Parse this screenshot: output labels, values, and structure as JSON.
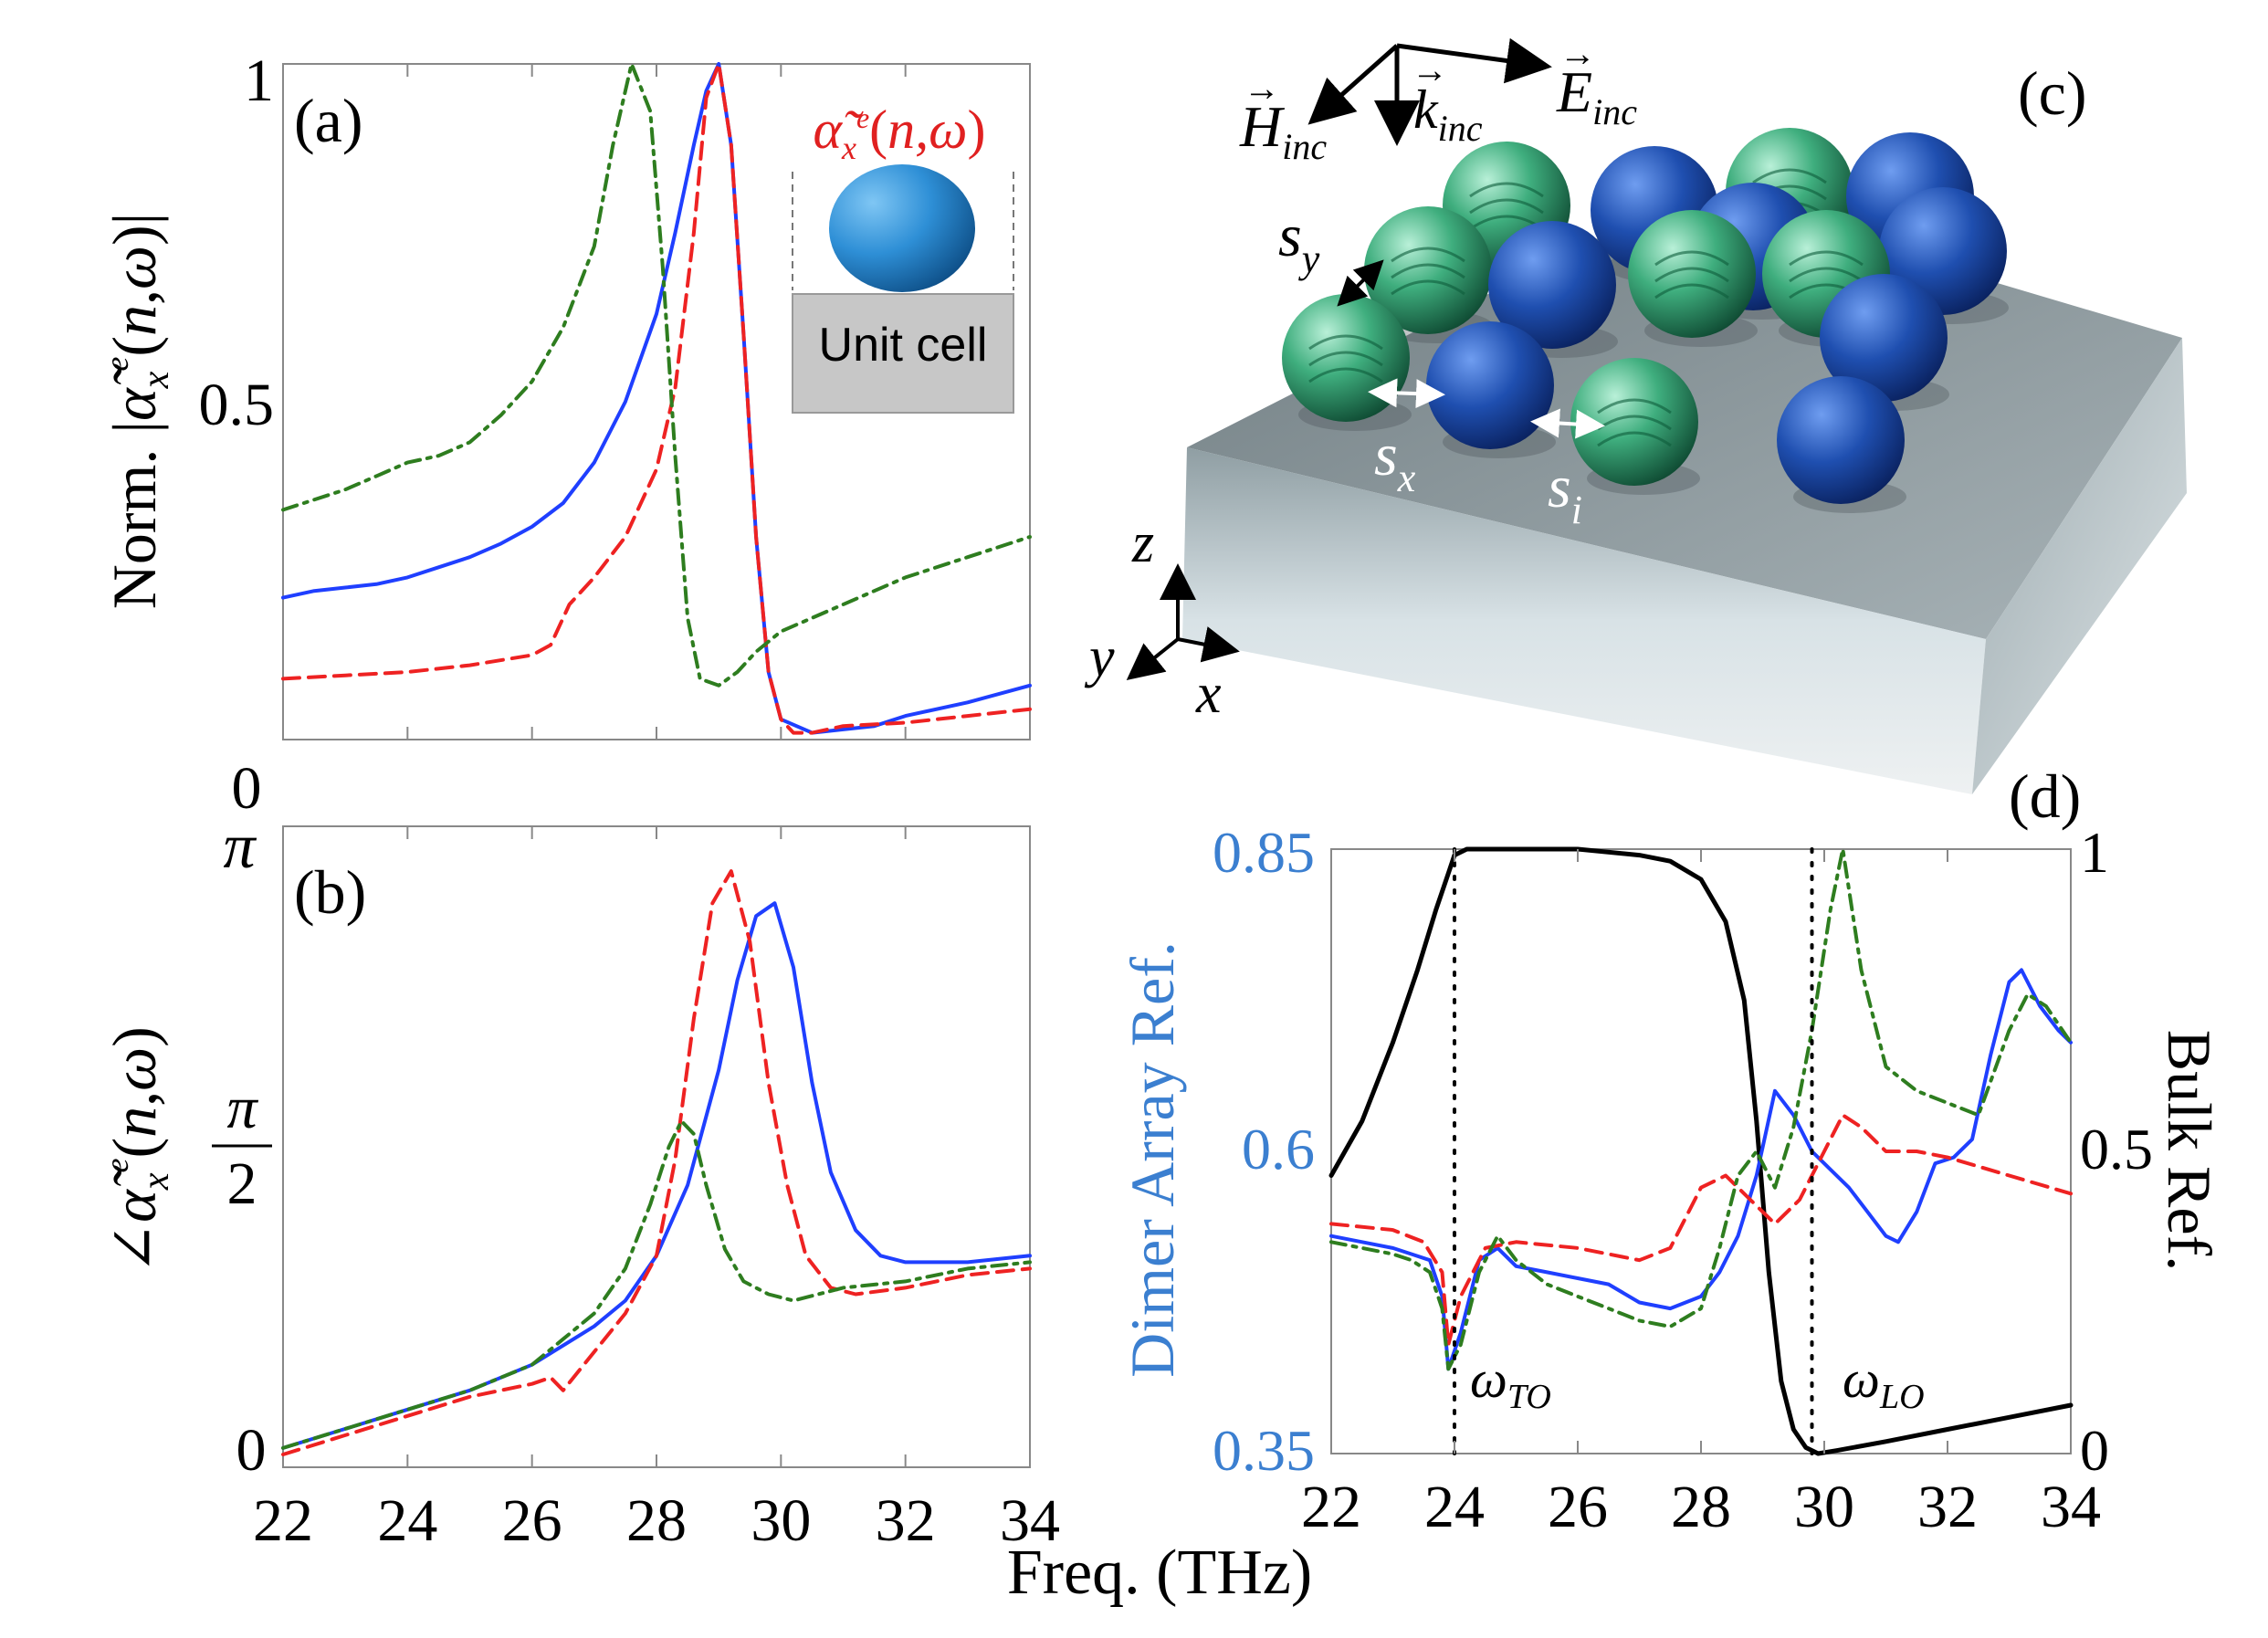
{
  "chart_data": [
    {
      "panel": "(a)",
      "type": "line",
      "ylabel": "Norm. |α̃ₓᵉ(n,ω)|",
      "xlim": [
        22,
        34
      ],
      "ylim": [
        0,
        1
      ],
      "y_ticks": [
        "0",
        "0.5",
        "1"
      ],
      "x_ticks": [
        "22",
        "24",
        "26",
        "28",
        "30",
        "32",
        "34"
      ],
      "inset": {
        "label": "α̃ₓᵉ(n,ω)",
        "caption": "Unit cell"
      },
      "series": [
        {
          "name": "blue-solid",
          "color": "#1f3fff",
          "dash": "solid",
          "x": [
            22,
            22.5,
            23,
            23.5,
            24,
            24.5,
            25,
            25.5,
            26,
            26.5,
            27,
            27.5,
            28,
            28.3,
            28.6,
            28.8,
            29,
            29.2,
            29.4,
            29.6,
            29.8,
            30,
            30.5,
            31,
            31.5,
            32,
            33,
            34
          ],
          "y": [
            0.21,
            0.22,
            0.225,
            0.23,
            0.24,
            0.255,
            0.27,
            0.29,
            0.315,
            0.35,
            0.41,
            0.5,
            0.63,
            0.75,
            0.88,
            0.96,
            1.0,
            0.88,
            0.6,
            0.3,
            0.1,
            0.03,
            0.01,
            0.015,
            0.02,
            0.035,
            0.055,
            0.08
          ]
        },
        {
          "name": "red-dashed",
          "color": "#ee2222",
          "dash": "dashed",
          "x": [
            22,
            23,
            24,
            25,
            26,
            26.3,
            26.6,
            27,
            27.5,
            28,
            28.3,
            28.6,
            28.8,
            29,
            29.2,
            29.4,
            29.6,
            29.8,
            30,
            30.2,
            30.5,
            31,
            32,
            33,
            34
          ],
          "y": [
            0.09,
            0.095,
            0.1,
            0.11,
            0.125,
            0.14,
            0.2,
            0.24,
            0.3,
            0.4,
            0.52,
            0.75,
            0.95,
            1.0,
            0.88,
            0.6,
            0.3,
            0.1,
            0.03,
            0.01,
            0.01,
            0.02,
            0.025,
            0.035,
            0.045
          ]
        },
        {
          "name": "green-dashdot",
          "color": "#2e7d1f",
          "dash": "dashdot",
          "x": [
            22,
            22.5,
            23,
            23.5,
            24,
            24.5,
            25,
            25.5,
            26,
            26.5,
            27,
            27.3,
            27.6,
            27.9,
            28.1,
            28.3,
            28.5,
            28.7,
            29,
            29.3,
            29.6,
            30,
            31,
            32,
            33,
            34
          ],
          "y": [
            0.34,
            0.355,
            0.37,
            0.39,
            0.41,
            0.42,
            0.44,
            0.48,
            0.53,
            0.61,
            0.73,
            0.88,
            1.0,
            0.93,
            0.7,
            0.42,
            0.18,
            0.09,
            0.08,
            0.1,
            0.13,
            0.16,
            0.2,
            0.24,
            0.27,
            0.3
          ]
        }
      ]
    },
    {
      "panel": "(b)",
      "type": "line",
      "ylabel": "∠α̃ₓᵉ(n,ω)",
      "xlabel": "Freq. (THz)",
      "xlim": [
        22,
        34
      ],
      "ylim": [
        0,
        1
      ],
      "y_ticks": [
        "0",
        "π/2",
        "π"
      ],
      "x_ticks": [
        "22",
        "24",
        "26",
        "28",
        "30",
        "32",
        "34"
      ],
      "series": [
        {
          "name": "blue-solid",
          "color": "#1f3fff",
          "dash": "solid",
          "x": [
            22,
            23,
            24,
            25,
            26,
            27,
            27.5,
            28,
            28.5,
            29,
            29.3,
            29.6,
            29.9,
            30.2,
            30.5,
            30.8,
            31.2,
            31.6,
            32,
            33,
            34
          ],
          "y": [
            0.03,
            0.06,
            0.09,
            0.12,
            0.16,
            0.22,
            0.26,
            0.33,
            0.44,
            0.62,
            0.76,
            0.86,
            0.88,
            0.78,
            0.6,
            0.46,
            0.37,
            0.33,
            0.32,
            0.32,
            0.33
          ]
        },
        {
          "name": "red-dashed",
          "color": "#ee2222",
          "dash": "dashed",
          "x": [
            22,
            23,
            24,
            25,
            26,
            26.3,
            26.5,
            27,
            27.5,
            28,
            28.3,
            28.6,
            28.9,
            29.2,
            29.5,
            29.8,
            30.1,
            30.4,
            30.8,
            31.2,
            32,
            33,
            34
          ],
          "y": [
            0.02,
            0.05,
            0.08,
            0.11,
            0.13,
            0.14,
            0.12,
            0.18,
            0.24,
            0.33,
            0.48,
            0.7,
            0.88,
            0.93,
            0.82,
            0.6,
            0.44,
            0.33,
            0.28,
            0.27,
            0.28,
            0.3,
            0.31
          ]
        },
        {
          "name": "green-dashdot",
          "color": "#2e7d1f",
          "dash": "dashdot",
          "x": [
            22,
            23,
            24,
            25,
            26,
            26.5,
            27,
            27.5,
            27.9,
            28.2,
            28.4,
            28.6,
            28.8,
            29.1,
            29.4,
            29.8,
            30.2,
            30.6,
            31,
            32,
            33,
            34
          ],
          "y": [
            0.03,
            0.06,
            0.09,
            0.12,
            0.16,
            0.2,
            0.24,
            0.31,
            0.41,
            0.5,
            0.54,
            0.52,
            0.44,
            0.34,
            0.29,
            0.27,
            0.26,
            0.27,
            0.28,
            0.29,
            0.31,
            0.32
          ]
        }
      ]
    },
    {
      "panel": "(d)",
      "type": "line",
      "ylabel_left": "Dimer Array Ref.",
      "ylabel_right": "Bulk Ref.",
      "xlim": [
        22,
        34
      ],
      "ylim_left": [
        0.35,
        0.85
      ],
      "ylim_right": [
        0,
        1
      ],
      "y_ticks_left": [
        "0.35",
        "0.6",
        "0.85"
      ],
      "y_ticks_right": [
        "0",
        "0.5",
        "1"
      ],
      "x_ticks": [
        "22",
        "24",
        "26",
        "28",
        "30",
        "32",
        "34"
      ],
      "annotations": [
        {
          "label": "ωTO",
          "x": 24.0
        },
        {
          "label": "ωLO",
          "x": 29.8
        }
      ],
      "series": [
        {
          "name": "Bulk Ref. (black)",
          "axis": "right",
          "color": "#000000",
          "dash": "solid",
          "x": [
            22,
            22.5,
            23,
            23.4,
            23.7,
            23.9,
            24.0,
            24.2,
            25,
            26,
            27,
            27.5,
            28,
            28.4,
            28.7,
            28.9,
            29.1,
            29.3,
            29.5,
            29.7,
            29.9,
            30.2,
            31,
            32,
            33,
            34
          ],
          "y": [
            0.46,
            0.55,
            0.68,
            0.8,
            0.9,
            0.96,
            0.99,
            1.0,
            1.0,
            1.0,
            0.99,
            0.98,
            0.95,
            0.88,
            0.75,
            0.55,
            0.3,
            0.12,
            0.04,
            0.01,
            0.0,
            0.005,
            0.02,
            0.04,
            0.06,
            0.08
          ]
        },
        {
          "name": "blue-solid",
          "axis": "left",
          "color": "#1f3fff",
          "dash": "solid",
          "x": [
            22,
            22.5,
            23,
            23.3,
            23.6,
            23.8,
            23.9,
            24.1,
            24.4,
            24.7,
            25,
            25.5,
            26,
            26.5,
            27,
            27.5,
            28,
            28.3,
            28.6,
            28.9,
            29.2,
            29.5,
            29.8,
            30.1,
            30.4,
            30.7,
            31,
            31.2,
            31.5,
            31.8,
            32.1,
            32.4,
            32.7,
            33,
            33.2,
            33.5,
            33.8,
            34
          ],
          "y": [
            0.53,
            0.525,
            0.52,
            0.515,
            0.51,
            0.48,
            0.42,
            0.45,
            0.51,
            0.52,
            0.505,
            0.5,
            0.495,
            0.49,
            0.475,
            0.47,
            0.48,
            0.5,
            0.53,
            0.58,
            0.65,
            0.63,
            0.6,
            0.585,
            0.57,
            0.55,
            0.53,
            0.525,
            0.55,
            0.59,
            0.595,
            0.61,
            0.68,
            0.74,
            0.75,
            0.72,
            0.7,
            0.69
          ]
        },
        {
          "name": "red-dashed",
          "axis": "left",
          "color": "#ee2222",
          "dash": "dashed",
          "x": [
            22,
            23,
            23.5,
            23.8,
            23.9,
            24.1,
            24.5,
            25,
            26,
            27,
            27.5,
            28,
            28.4,
            28.8,
            29.2,
            29.6,
            30,
            30.3,
            30.6,
            31,
            31.5,
            32,
            33,
            34
          ],
          "y": [
            0.54,
            0.535,
            0.525,
            0.5,
            0.44,
            0.48,
            0.52,
            0.525,
            0.52,
            0.51,
            0.52,
            0.57,
            0.58,
            0.56,
            0.54,
            0.56,
            0.6,
            0.63,
            0.62,
            0.6,
            0.6,
            0.595,
            0.58,
            0.565
          ]
        },
        {
          "name": "green-dashdot",
          "axis": "left",
          "color": "#2e7d1f",
          "dash": "dashdot",
          "x": [
            22,
            22.5,
            23,
            23.3,
            23.6,
            23.8,
            23.9,
            24.1,
            24.4,
            24.7,
            25,
            25.5,
            26,
            26.5,
            27,
            27.5,
            28,
            28.3,
            28.6,
            28.9,
            29.2,
            29.5,
            29.8,
            30.1,
            30.3,
            30.6,
            31,
            31.5,
            32,
            32.5,
            33,
            33.3,
            33.6,
            34
          ],
          "y": [
            0.525,
            0.52,
            0.515,
            0.51,
            0.5,
            0.47,
            0.42,
            0.44,
            0.5,
            0.53,
            0.51,
            0.49,
            0.48,
            0.47,
            0.46,
            0.455,
            0.47,
            0.52,
            0.58,
            0.6,
            0.57,
            0.62,
            0.7,
            0.8,
            0.85,
            0.75,
            0.67,
            0.65,
            0.64,
            0.63,
            0.7,
            0.73,
            0.72,
            0.69
          ]
        }
      ]
    }
  ],
  "panel_c": {
    "label": "(c)",
    "vectors": {
      "h": "H",
      "h_sub": "inc",
      "k": "k",
      "k_sub": "inc",
      "e": "E",
      "e_sub": "inc"
    },
    "spacings": {
      "sy": "s",
      "sy_sub": "y",
      "sx": "s",
      "sx_sub": "x",
      "si": "s",
      "si_sub": "i"
    },
    "axes": {
      "z": "z",
      "y": "y",
      "x": "x"
    }
  },
  "xlabel": "Freq. (THz)"
}
